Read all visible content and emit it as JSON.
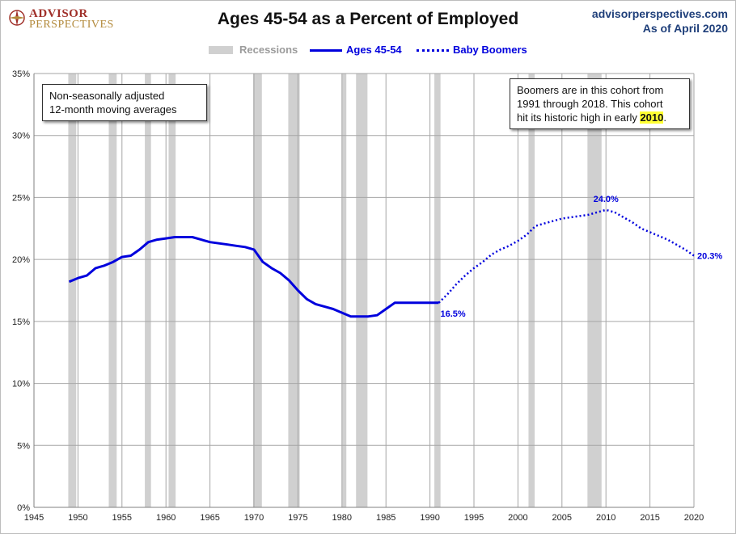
{
  "logo": {
    "line1": "ADVISOR",
    "line2": "PERSPECTIVES"
  },
  "header": {
    "title": "Ages 45-54 as a Percent of Employed",
    "site": "advisorperspectives.com",
    "date": "As of April 2020"
  },
  "legend": {
    "recessions": "Recessions",
    "series1": "Ages 45-54",
    "series2": "Baby Boomers"
  },
  "notes": {
    "left_line1": "Non-seasonally adjusted",
    "left_line2": "12-month moving averages",
    "right_line1": "Boomers are in this cohort from",
    "right_line2": "1991  through 2018.  This cohort",
    "right_line3_pre": "hit its historic high in early ",
    "right_line3_hl": "2010",
    "right_line3_post": "."
  },
  "colors": {
    "series": "#0000dd",
    "recession": "#d0d0d0",
    "grid": "#a6a6a6",
    "highlight": "#ffff33"
  },
  "chart_data": {
    "type": "line",
    "title": "Ages 45-54 as a Percent of Employed",
    "xlim": [
      1945,
      2020
    ],
    "ylim": [
      0,
      35
    ],
    "x_ticks": [
      "1945",
      "1950",
      "1955",
      "1960",
      "1965",
      "1970",
      "1975",
      "1980",
      "1985",
      "1990",
      "1995",
      "2000",
      "2005",
      "2010",
      "2015",
      "2020"
    ],
    "x_tick_values": [
      1945,
      1950,
      1955,
      1960,
      1965,
      1970,
      1975,
      1980,
      1985,
      1990,
      1995,
      2000,
      2005,
      2010,
      2015,
      2020
    ],
    "y_ticks": [
      "0%",
      "5%",
      "10%",
      "15%",
      "20%",
      "25%",
      "30%",
      "35%"
    ],
    "y_tick_values": [
      0,
      5,
      10,
      15,
      20,
      25,
      30,
      35
    ],
    "grid": true,
    "legend_position": "top",
    "recessions": [
      [
        1948.9,
        1949.8
      ],
      [
        1953.5,
        1954.4
      ],
      [
        1957.6,
        1958.3
      ],
      [
        1960.3,
        1961.1
      ],
      [
        1969.9,
        1970.9
      ],
      [
        1973.9,
        1975.2
      ],
      [
        1980.0,
        1980.5
      ],
      [
        1981.6,
        1982.9
      ],
      [
        1990.5,
        1991.2
      ],
      [
        2001.2,
        2001.9
      ],
      [
        2007.9,
        2009.5
      ]
    ],
    "series": [
      {
        "name": "Ages 45-54",
        "style": "solid",
        "x": [
          1949,
          1950,
          1951,
          1952,
          1953,
          1954,
          1955,
          1956,
          1957,
          1958,
          1959,
          1960,
          1961,
          1962,
          1963,
          1964,
          1965,
          1966,
          1967,
          1968,
          1969,
          1970,
          1971,
          1972,
          1973,
          1974,
          1975,
          1976,
          1977,
          1978,
          1979,
          1980,
          1981,
          1982,
          1983,
          1984,
          1985,
          1986,
          1987,
          1988,
          1989,
          1990,
          1991
        ],
        "values": [
          18.2,
          18.5,
          18.7,
          19.3,
          19.5,
          19.8,
          20.2,
          20.3,
          20.8,
          21.4,
          21.6,
          21.7,
          21.8,
          21.8,
          21.8,
          21.6,
          21.4,
          21.3,
          21.2,
          21.1,
          21.0,
          20.8,
          19.8,
          19.3,
          18.9,
          18.3,
          17.5,
          16.8,
          16.4,
          16.2,
          16.0,
          15.7,
          15.4,
          15.4,
          15.4,
          15.5,
          16.0,
          16.5,
          16.5,
          16.5,
          16.5,
          16.5,
          16.5
        ],
        "end_label": "16.5%"
      },
      {
        "name": "Baby Boomers",
        "style": "dotted",
        "x": [
          1991,
          1992,
          1993,
          1994,
          1995,
          1996,
          1997,
          1998,
          1999,
          2000,
          2001,
          2002,
          2003,
          2004,
          2005,
          2006,
          2007,
          2008,
          2009,
          2010,
          2011,
          2012,
          2013,
          2014,
          2015,
          2016,
          2017,
          2018,
          2019,
          2020
        ],
        "values": [
          16.5,
          17.2,
          18.0,
          18.7,
          19.3,
          19.8,
          20.4,
          20.8,
          21.1,
          21.5,
          22.0,
          22.7,
          22.9,
          23.1,
          23.3,
          23.4,
          23.5,
          23.6,
          23.8,
          24.0,
          23.8,
          23.4,
          23.0,
          22.5,
          22.2,
          21.9,
          21.6,
          21.2,
          20.8,
          20.3
        ],
        "peak_label": "24.0%",
        "end_label": "20.3%"
      }
    ]
  }
}
